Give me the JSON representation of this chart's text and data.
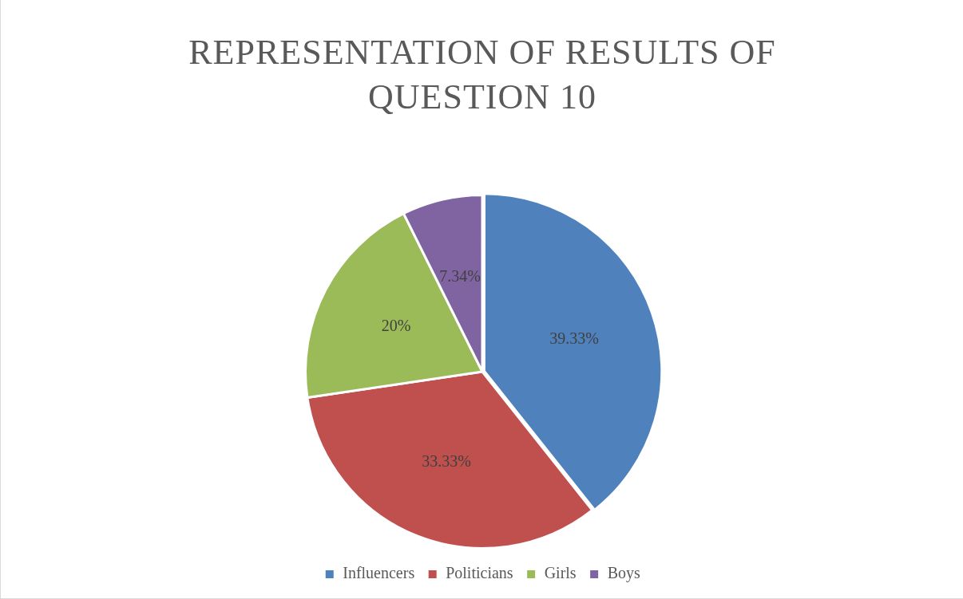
{
  "chart_data": {
    "type": "pie",
    "title": "REPRESENTATION OF RESULTS OF QUESTION 10",
    "categories": [
      "Influencers",
      "Politicians",
      "Girls",
      "Boys"
    ],
    "values": [
      39.33,
      33.33,
      20,
      7.34
    ],
    "value_labels": [
      "39.33%",
      "33.33%",
      "20%",
      "7.34%"
    ],
    "colors": [
      "#4f81bd",
      "#c0504d",
      "#9bbb59",
      "#8064a2"
    ],
    "legend": "bottom"
  }
}
